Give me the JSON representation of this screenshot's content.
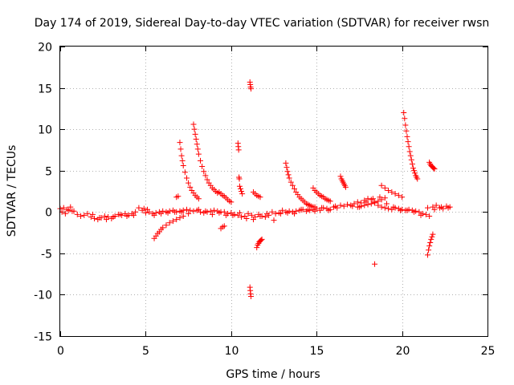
{
  "chart_data": {
    "type": "scatter",
    "title": "Day 174 of 2019, Sidereal Day-to-day VTEC variation (SDTVAR) for receiver rwsn",
    "xlabel": "GPS time / hours",
    "ylabel": "SDTVAR / TECUs",
    "xlim": [
      0,
      25
    ],
    "ylim": [
      -15,
      20
    ],
    "x_ticks": [
      "0",
      "5",
      "10",
      "15",
      "20",
      "25"
    ],
    "y_ticks": [
      "-15",
      "-10",
      "-5",
      "0",
      "5",
      "10",
      "15",
      "20"
    ],
    "x_tick_values": [
      0,
      5,
      10,
      15,
      20,
      25
    ],
    "y_tick_values": [
      -15,
      -10,
      -5,
      0,
      5,
      10,
      15,
      20
    ],
    "grid": true,
    "marker": "+",
    "marker_color": "#ff0000",
    "series": [
      {
        "name": "SDTVAR",
        "x": [
          0.0,
          0.2,
          0.4,
          0.6,
          0.8,
          1.0,
          1.2,
          1.4,
          1.6,
          1.8,
          2.0,
          2.2,
          2.4,
          2.6,
          2.8,
          3.0,
          3.2,
          3.4,
          3.6,
          3.8,
          4.0,
          4.2,
          4.4,
          4.6,
          4.8,
          5.0,
          5.2,
          5.4,
          5.6,
          5.8,
          6.0,
          6.2,
          6.4,
          6.6,
          6.8,
          7.0,
          7.2,
          7.4,
          7.6,
          7.8,
          8.0,
          8.2,
          8.4,
          8.6,
          8.8,
          9.0,
          9.2,
          9.4,
          9.6,
          9.8,
          10.0,
          10.2,
          10.4,
          10.6,
          10.8,
          11.0,
          11.2,
          11.4,
          11.6,
          11.8,
          12.0,
          12.2,
          12.4,
          12.6,
          12.8,
          13.0,
          13.2,
          13.4,
          13.6,
          13.8,
          14.0,
          14.2,
          14.4,
          14.6,
          14.8,
          15.0,
          15.2,
          15.4,
          15.6,
          15.8,
          16.0,
          16.2,
          16.4,
          16.6,
          16.8,
          17.0,
          17.2,
          17.4,
          17.6,
          17.8,
          18.0,
          18.2,
          18.4,
          18.6,
          18.8,
          19.0,
          19.2,
          19.4,
          19.6,
          19.8,
          20.0,
          20.2,
          20.4,
          20.6,
          20.8,
          21.0,
          21.2,
          21.4,
          21.6,
          21.8,
          22.0,
          22.2,
          22.4,
          22.6,
          22.8,
          0.1,
          0.3,
          0.5,
          0.7,
          1.9,
          2.3,
          2.7,
          3.1,
          3.5,
          3.9,
          4.3,
          4.9,
          5.1,
          5.5,
          5.9,
          6.3,
          6.7,
          7.1,
          7.5,
          8.1,
          8.5,
          8.9,
          9.3,
          9.7,
          10.1,
          10.5,
          10.9,
          11.3,
          11.7,
          12.1,
          12.5,
          12.9,
          13.3,
          13.7,
          14.1,
          14.5,
          14.9,
          15.3,
          15.7,
          16.1,
          17.1,
          17.5,
          17.9,
          18.3,
          18.7,
          19.1,
          19.5,
          19.9,
          20.3,
          20.7,
          21.1,
          21.5,
          21.9,
          22.3,
          22.7,
          7.0,
          7.05,
          7.1,
          7.15,
          7.2,
          7.3,
          7.4,
          7.5,
          7.6,
          7.7,
          7.8,
          7.9,
          8.0,
          8.1,
          7.8,
          7.85,
          7.9,
          7.95,
          8.0,
          8.05,
          8.1,
          8.2,
          8.3,
          8.4,
          8.5,
          8.6,
          8.7,
          8.8,
          8.9,
          9.0,
          9.1,
          9.2,
          9.3,
          9.4,
          9.5,
          9.6,
          9.7,
          9.8,
          9.9,
          10.0,
          10.4,
          10.42,
          10.44,
          10.46,
          10.48,
          10.5,
          10.55,
          10.6,
          10.65,
          11.1,
          11.12,
          11.14,
          11.16,
          11.1,
          11.12,
          11.14,
          11.16,
          11.3,
          11.4,
          11.5,
          11.6,
          11.7,
          11.5,
          11.55,
          11.6,
          11.65,
          11.7,
          11.75,
          11.8,
          13.2,
          13.25,
          13.3,
          13.35,
          13.4,
          13.5,
          13.6,
          13.7,
          13.8,
          13.9,
          14.0,
          14.1,
          14.2,
          14.3,
          14.4,
          14.5,
          14.6,
          14.7,
          14.8,
          14.9,
          14.8,
          14.9,
          15.0,
          15.1,
          15.2,
          15.3,
          15.4,
          15.5,
          15.6,
          15.7,
          15.8,
          16.4,
          16.45,
          16.5,
          16.55,
          16.6,
          16.65,
          16.7,
          5.5,
          5.6,
          5.7,
          5.8,
          5.9,
          6.0,
          6.2,
          6.4,
          6.6,
          6.8,
          7.0,
          7.2,
          9.4,
          9.5,
          9.6,
          6.8,
          6.9,
          18.4,
          20.1,
          20.15,
          20.2,
          20.25,
          20.3,
          20.35,
          20.4,
          20.45,
          20.5,
          20.55,
          20.6,
          20.65,
          20.7,
          20.75,
          20.8,
          20.85,
          20.9,
          21.5,
          21.55,
          21.6,
          21.65,
          21.7,
          21.75,
          21.8,
          21.6,
          21.65,
          21.7,
          21.75,
          21.8,
          21.85,
          21.9,
          18.8,
          19.0,
          19.2,
          19.4,
          19.6,
          19.8,
          20.0,
          17.4,
          17.6,
          17.8,
          18.0,
          18.2,
          18.4,
          18.6,
          18.8,
          19.0
        ],
        "y": [
          0.4,
          0.5,
          0.3,
          0.6,
          0.1,
          -0.3,
          -0.5,
          -0.4,
          -0.2,
          -0.6,
          -0.8,
          -0.9,
          -0.7,
          -0.5,
          -0.6,
          -0.8,
          -0.5,
          -0.3,
          -0.4,
          -0.2,
          -0.4,
          -0.2,
          0.0,
          0.5,
          0.2,
          -0.1,
          0.0,
          -0.2,
          -0.1,
          0.0,
          0.1,
          0.0,
          0.1,
          0.2,
          0.0,
          0.1,
          0.2,
          0.3,
          0.2,
          0.1,
          0.2,
          0.0,
          -0.1,
          0.0,
          0.1,
          0.2,
          0.1,
          0.0,
          0.0,
          -0.2,
          -0.1,
          -0.3,
          -0.4,
          -0.6,
          -0.5,
          -0.2,
          -0.4,
          -0.6,
          -0.3,
          -0.5,
          -0.6,
          -0.4,
          0.0,
          -0.2,
          -0.1,
          0.2,
          0.0,
          0.1,
          0.0,
          0.1,
          0.2,
          0.3,
          0.1,
          0.2,
          0.3,
          0.4,
          0.2,
          0.5,
          0.4,
          0.3,
          0.6,
          0.5,
          0.8,
          0.7,
          0.9,
          0.8,
          1.0,
          1.2,
          1.1,
          1.4,
          1.6,
          1.5,
          1.2,
          0.8,
          0.6,
          0.5,
          0.4,
          0.3,
          0.5,
          0.4,
          0.3,
          0.2,
          0.3,
          0.2,
          0.1,
          0.0,
          -0.2,
          -0.3,
          -0.5,
          0.6,
          0.8,
          0.5,
          0.4,
          0.7,
          0.6,
          0.0,
          -0.2,
          0.2,
          0.1,
          -0.3,
          -0.7,
          -0.9,
          -0.6,
          -0.3,
          -0.5,
          -0.4,
          0.4,
          0.3,
          -0.4,
          -0.2,
          -0.1,
          0.0,
          0.0,
          -0.2,
          0.3,
          0.1,
          -0.3,
          -0.1,
          -0.4,
          -0.4,
          -0.1,
          -0.8,
          -0.9,
          -0.5,
          -0.2,
          -1.0,
          -0.2,
          -0.1,
          -0.2,
          0.3,
          0.3,
          0.1,
          0.5,
          0.2,
          0.7,
          0.7,
          0.6,
          1.2,
          1.6,
          1.8,
          1.0,
          0.6,
          0.2,
          0.2,
          0.0,
          -0.4,
          0.5,
          0.3,
          0.6,
          0.5,
          8.4,
          7.6,
          6.8,
          6.2,
          5.6,
          4.8,
          4.1,
          3.5,
          3.0,
          2.6,
          2.3,
          2.0,
          1.8,
          1.6,
          10.6,
          10.0,
          9.4,
          8.8,
          8.2,
          7.6,
          7.0,
          6.2,
          5.5,
          4.9,
          4.4,
          3.9,
          3.5,
          3.2,
          2.9,
          2.7,
          2.5,
          2.3,
          2.4,
          2.2,
          2.0,
          1.9,
          1.7,
          1.5,
          1.3,
          1.2,
          8.3,
          7.9,
          7.5,
          4.2,
          4.0,
          3.1,
          2.8,
          2.5,
          2.2,
          15.7,
          15.4,
          15.1,
          14.9,
          -9.1,
          -9.5,
          -9.9,
          -10.2,
          2.4,
          2.2,
          2.0,
          1.9,
          1.8,
          -4.3,
          -4.0,
          -3.8,
          -3.6,
          -3.5,
          -3.4,
          -3.3,
          5.9,
          5.4,
          4.9,
          4.5,
          4.1,
          3.6,
          3.2,
          2.8,
          2.4,
          2.1,
          1.8,
          1.6,
          1.4,
          1.2,
          1.0,
          0.9,
          0.8,
          0.7,
          0.6,
          0.6,
          2.9,
          2.6,
          2.4,
          2.2,
          2.0,
          1.9,
          1.8,
          1.6,
          1.5,
          1.4,
          1.3,
          4.3,
          4.0,
          3.8,
          3.6,
          3.4,
          3.2,
          3.0,
          -3.2,
          -2.9,
          -2.6,
          -2.4,
          -2.1,
          -1.9,
          -1.6,
          -1.3,
          -1.1,
          -0.9,
          -0.7,
          -0.5,
          -2.0,
          -1.8,
          -1.7,
          1.8,
          1.9,
          -6.3,
          12.0,
          11.3,
          10.5,
          9.8,
          9.1,
          8.5,
          7.9,
          7.3,
          6.8,
          6.3,
          5.8,
          5.3,
          5.0,
          4.7,
          4.4,
          4.2,
          4.0,
          -5.2,
          -4.6,
          -4.1,
          -3.7,
          -3.3,
          -3.0,
          -2.7,
          6.0,
          5.8,
          5.6,
          5.5,
          5.4,
          5.3,
          5.2,
          3.2,
          2.9,
          2.6,
          2.4,
          2.2,
          2.0,
          1.8,
          0.6,
          0.7,
          0.8,
          0.9,
          1.0,
          1.1,
          1.3,
          1.5,
          1.7
        ]
      }
    ]
  }
}
